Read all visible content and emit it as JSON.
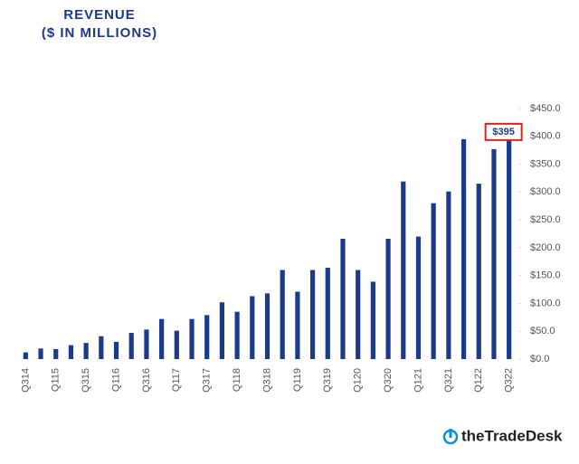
{
  "chart_data": {
    "type": "bar",
    "title": "REVENUE",
    "subtitle": "($ IN MILLIONS)",
    "categories": [
      "Q314",
      null,
      "Q115",
      null,
      "Q315",
      null,
      "Q116",
      null,
      "Q316",
      null,
      "Q117",
      null,
      "Q317",
      null,
      "Q118",
      null,
      "Q318",
      null,
      "Q119",
      null,
      "Q319",
      null,
      "Q120",
      null,
      "Q320",
      null,
      "Q121",
      null,
      "Q321",
      null,
      "Q122",
      null,
      "Q322"
    ],
    "values": [
      12,
      19,
      18,
      25,
      29,
      41,
      31,
      47,
      53,
      72,
      51,
      72,
      79,
      102,
      85,
      113,
      118,
      160,
      121,
      160,
      164,
      216,
      160,
      139,
      216,
      319,
      220,
      280,
      301,
      395,
      315,
      377,
      395
    ],
    "value_labels": [
      null,
      null,
      null,
      null,
      null,
      null,
      null,
      null,
      null,
      null,
      null,
      null,
      null,
      null,
      null,
      null,
      null,
      null,
      null,
      null,
      null,
      null,
      null,
      null,
      null,
      null,
      null,
      null,
      null,
      null,
      null,
      null,
      "$395"
    ],
    "color": "#1b3a8c",
    "ylim": [
      0,
      450
    ],
    "yticks": [
      {
        "value": 0,
        "label": "$0.0"
      },
      {
        "value": 50,
        "label": "$50.0"
      },
      {
        "value": 100,
        "label": "$100.0"
      },
      {
        "value": 150,
        "label": "$150.0"
      },
      {
        "value": 200,
        "label": "$200.0"
      },
      {
        "value": 250,
        "label": "$250.0"
      },
      {
        "value": 300,
        "label": "$300.0"
      },
      {
        "value": 350,
        "label": "$350.0"
      },
      {
        "value": 400,
        "label": "$400.0"
      },
      {
        "value": 450,
        "label": "$450.0"
      }
    ],
    "grid": false
  },
  "logo": "theTradeDesk"
}
